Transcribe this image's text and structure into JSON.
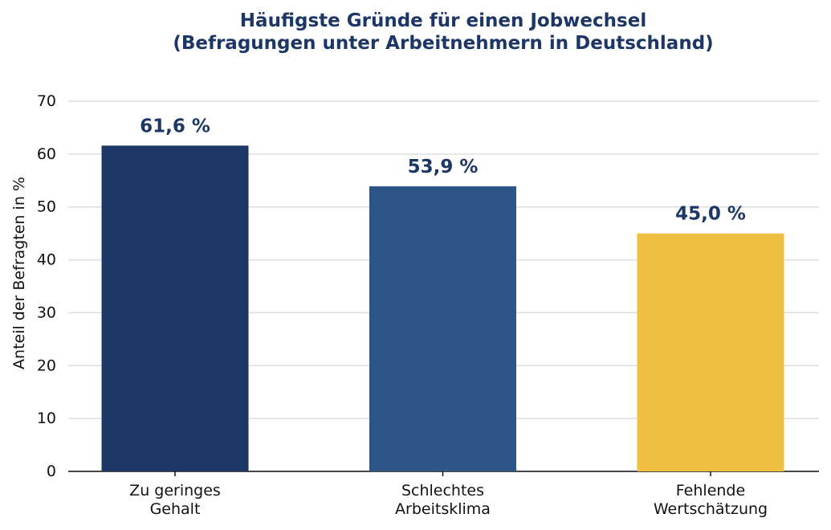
{
  "chart_data": {
    "type": "bar",
    "title": "Häufigste Gründe für einen Jobwechsel\n(Befragungen unter Arbeitnehmern in Deutschland)",
    "ylabel": "Anteil der Befragten in %",
    "categories": [
      "Zu geringes\nGehalt",
      "Schlechtes\nArbeitsklima",
      "Fehlende\nWertschätzung"
    ],
    "values": [
      61.6,
      53.9,
      45.0
    ],
    "value_labels": [
      "61,6 %",
      "53,9 %",
      "45,0 %"
    ],
    "colors": [
      "#1c3766",
      "#2d5587",
      "#efbf42"
    ],
    "ylim": [
      0,
      70
    ],
    "yticks": [
      0,
      10,
      20,
      30,
      40,
      50,
      60,
      70
    ],
    "grid": true
  }
}
